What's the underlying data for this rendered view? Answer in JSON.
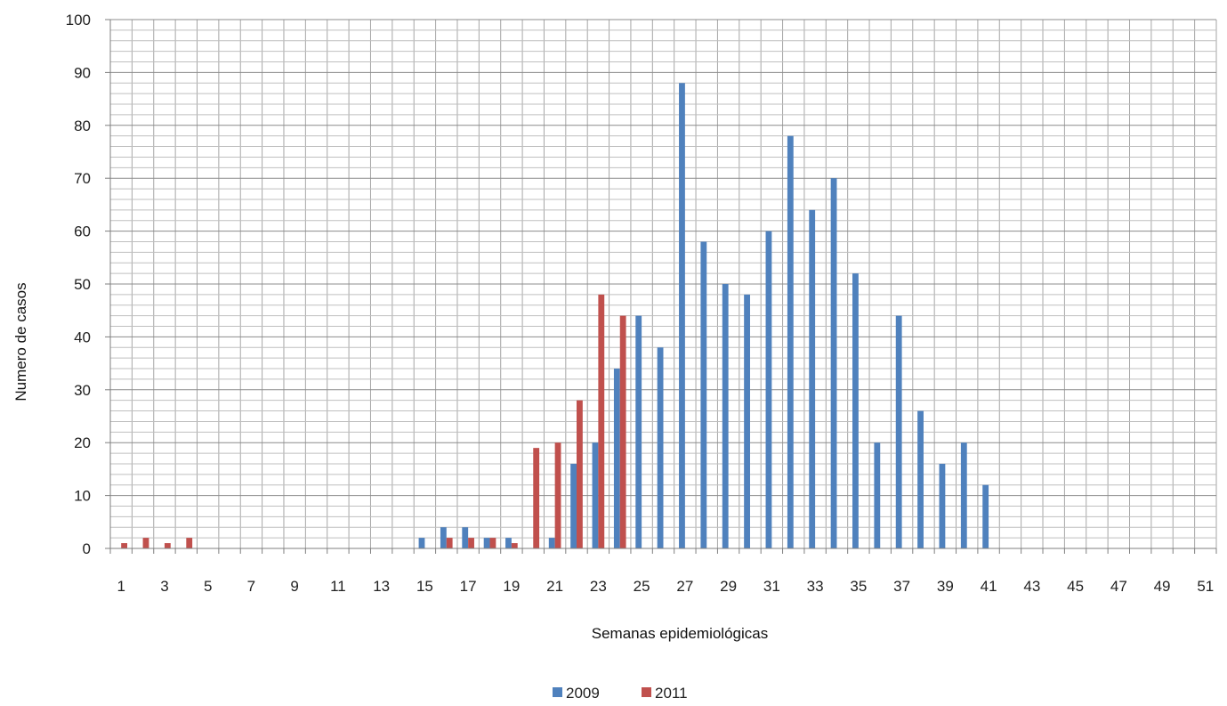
{
  "chart_data": {
    "type": "bar",
    "xlabel": "Semanas epidemiológicas",
    "ylabel": "Numero de casos",
    "ylim": [
      0,
      100
    ],
    "yticks": [
      0,
      10,
      20,
      30,
      40,
      50,
      60,
      70,
      80,
      90,
      100
    ],
    "categories": [
      "1",
      "2",
      "3",
      "4",
      "5",
      "6",
      "7",
      "8",
      "9",
      "10",
      "11",
      "12",
      "13",
      "14",
      "15",
      "16",
      "17",
      "18",
      "19",
      "20",
      "21",
      "22",
      "23",
      "24",
      "25",
      "26",
      "27",
      "28",
      "29",
      "30",
      "31",
      "32",
      "33",
      "34",
      "35",
      "36",
      "37",
      "38",
      "39",
      "40",
      "41",
      "42",
      "43",
      "44",
      "45",
      "46",
      "47",
      "48",
      "49",
      "50",
      "51"
    ],
    "xtick_labels": [
      "1",
      "3",
      "5",
      "7",
      "9",
      "11",
      "13",
      "15",
      "17",
      "19",
      "21",
      "23",
      "25",
      "27",
      "29",
      "31",
      "33",
      "35",
      "37",
      "39",
      "41",
      "43",
      "45",
      "47",
      "49",
      "51"
    ],
    "grid": true,
    "legend_position": "bottom",
    "series": [
      {
        "name": "2009",
        "color": "#4f81bd",
        "values": [
          0,
          0,
          0,
          0,
          0,
          0,
          0,
          0,
          0,
          0,
          0,
          0,
          0,
          0,
          2,
          4,
          4,
          2,
          2,
          0,
          2,
          16,
          20,
          34,
          44,
          38,
          88,
          58,
          50,
          48,
          60,
          78,
          64,
          70,
          52,
          20,
          44,
          26,
          16,
          20,
          12,
          0,
          0,
          0,
          0,
          0,
          0,
          0,
          0,
          0,
          0
        ]
      },
      {
        "name": "2011",
        "color": "#c0504d",
        "values": [
          1,
          2,
          1,
          2,
          0,
          0,
          0,
          0,
          0,
          0,
          0,
          0,
          0,
          0,
          0,
          2,
          2,
          2,
          1,
          19,
          20,
          28,
          48,
          44,
          0,
          0,
          0,
          0,
          0,
          0,
          0,
          0,
          0,
          0,
          0,
          0,
          0,
          0,
          0,
          0,
          0,
          0,
          0,
          0,
          0,
          0,
          0,
          0,
          0,
          0,
          0
        ]
      }
    ]
  }
}
